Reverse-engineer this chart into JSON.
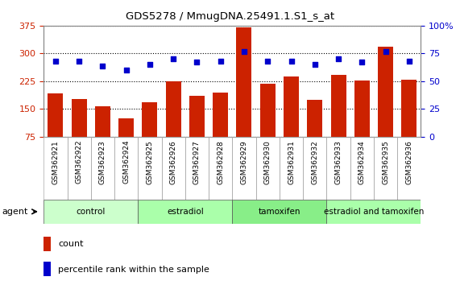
{
  "title": "GDS5278 / MmugDNA.25491.1.S1_s_at",
  "samples": [
    "GSM362921",
    "GSM362922",
    "GSM362923",
    "GSM362924",
    "GSM362925",
    "GSM362926",
    "GSM362927",
    "GSM362928",
    "GSM362929",
    "GSM362930",
    "GSM362931",
    "GSM362932",
    "GSM362933",
    "GSM362934",
    "GSM362935",
    "GSM362936"
  ],
  "counts": [
    193,
    178,
    158,
    125,
    168,
    225,
    185,
    195,
    370,
    218,
    238,
    175,
    242,
    228,
    318,
    230
  ],
  "percentiles": [
    68,
    68,
    64,
    60,
    65,
    70,
    67,
    68,
    77,
    68,
    68,
    65,
    70,
    67,
    77,
    68
  ],
  "bar_color": "#cc2200",
  "dot_color": "#0000cc",
  "groups": [
    {
      "label": "control",
      "start": 0,
      "end": 4,
      "color": "#ccffcc"
    },
    {
      "label": "estradiol",
      "start": 4,
      "end": 8,
      "color": "#aaffaa"
    },
    {
      "label": "tamoxifen",
      "start": 8,
      "end": 12,
      "color": "#88ee88"
    },
    {
      "label": "estradiol and tamoxifen",
      "start": 12,
      "end": 16,
      "color": "#aaffaa"
    }
  ],
  "ylim_left": [
    75,
    375
  ],
  "ylim_right": [
    0,
    100
  ],
  "yticks_left": [
    75,
    150,
    225,
    300,
    375
  ],
  "yticks_right": [
    0,
    25,
    50,
    75,
    100
  ],
  "agent_label": "agent",
  "legend_count": "count",
  "legend_percentile": "percentile rank within the sample",
  "bg_color": "#ffffff",
  "plot_bg": "#ffffff",
  "tick_area_color": "#cccccc",
  "left_axis_color": "#cc2200",
  "right_axis_color": "#0000cc"
}
